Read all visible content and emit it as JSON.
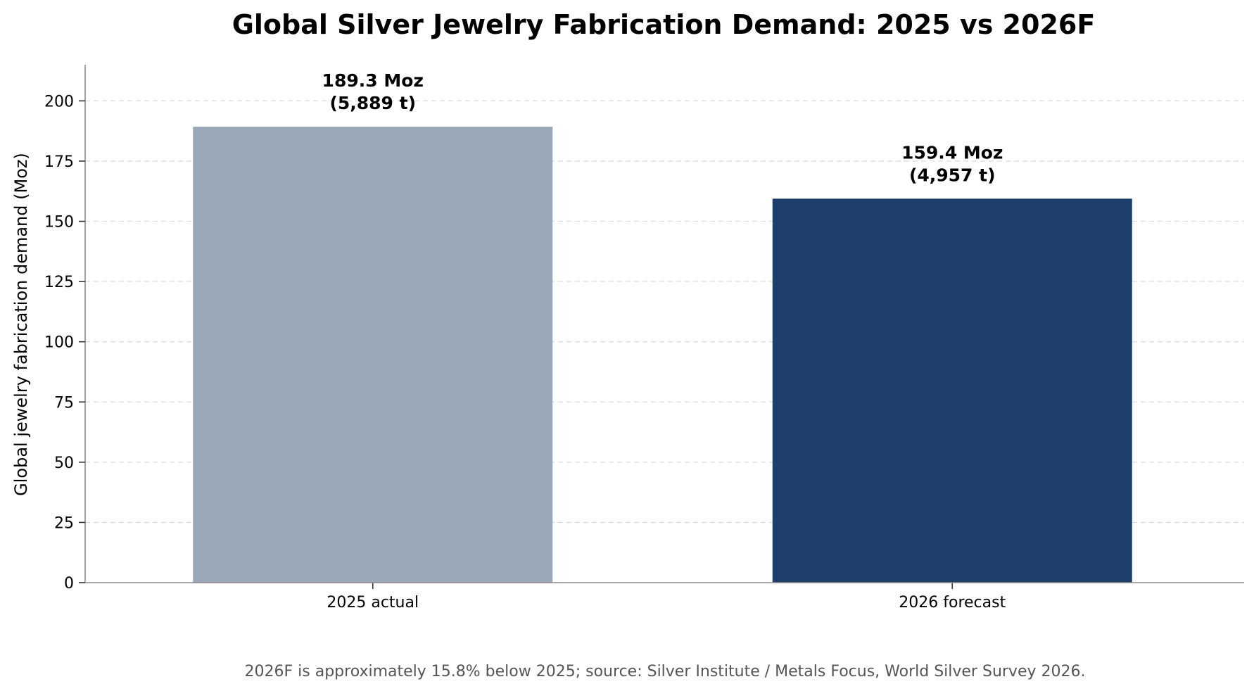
{
  "chart_data": {
    "type": "bar",
    "title": "Global Silver Jewelry Fabrication Demand: 2025 vs 2026F",
    "ylabel": "Global jewelry fabrication demand (Moz)",
    "xlabel": "",
    "categories": [
      "2025 actual",
      "2026 forecast"
    ],
    "values": [
      189.3,
      159.4
    ],
    "bar_labels": [
      [
        "189.3 Moz",
        "(5,889 t)"
      ],
      [
        "159.4 Moz",
        "(4,957 t)"
      ]
    ],
    "bar_colors": [
      "#9aa7b8",
      "#1e3f6a"
    ],
    "ylim": [
      0,
      215
    ],
    "yticks": [
      0,
      25,
      50,
      75,
      100,
      125,
      150,
      175,
      200
    ],
    "grid": "y-dashed",
    "footnote": "2026F is approximately 15.8% below 2025; source: Silver Institute / Metals Focus, World Silver Survey 2026."
  }
}
